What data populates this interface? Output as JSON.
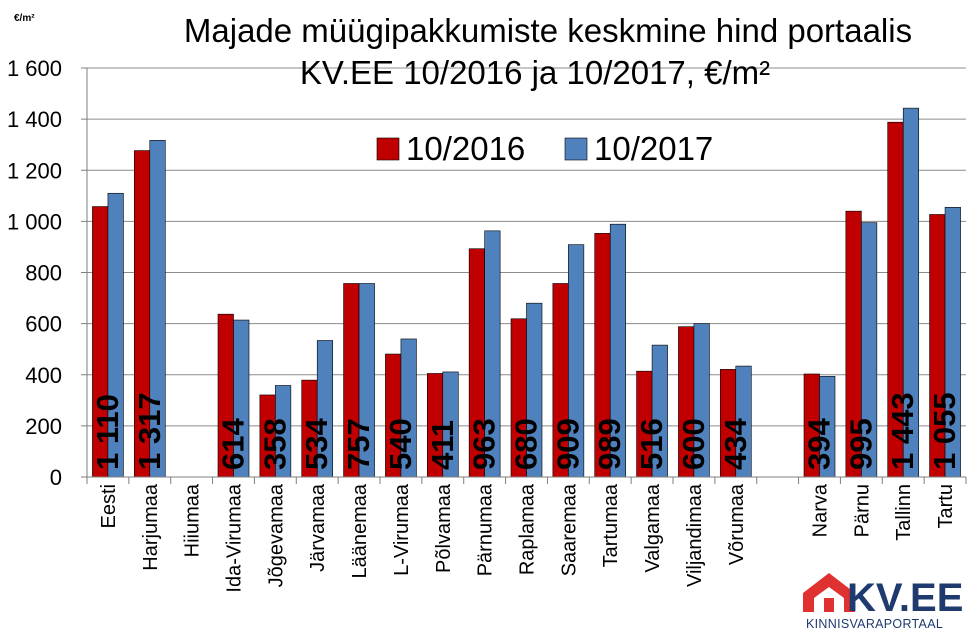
{
  "chart_data": {
    "type": "bar",
    "title_line1": "Majade müügipakkumiste keskmine hind portaalis",
    "title_line2": "KV.EE 10/2016 ja 10/2017, €/m²",
    "unit_label": "€/m²",
    "ylim": [
      0,
      1600
    ],
    "yticks": [
      0,
      200,
      400,
      600,
      800,
      1000,
      1200,
      1400,
      1600
    ],
    "ytick_labels": [
      "0",
      "200",
      "400",
      "600",
      "800",
      "1 000",
      "1 200",
      "1 400",
      "1 600"
    ],
    "grid": true,
    "legend_position": "top-right",
    "categories": [
      "Eesti",
      "Harjumaa",
      "Hiiumaa",
      "Ida-Virumaa",
      "Jõgevamaa",
      "Järvamaa",
      "Läänemaa",
      "L-Virumaa",
      "Põlvamaa",
      "Pärnumaa",
      "Raplamaa",
      "Saaremaa",
      "Tartumaa",
      "Valgamaa",
      "Viljandimaa",
      "Võrumaa",
      "",
      "Narva",
      "Pärnu",
      "Tallinn",
      "Tartu"
    ],
    "series": [
      {
        "name": "10/2016",
        "color": "#c00000",
        "values": [
          1058,
          1277,
          null,
          637,
          321,
          379,
          757,
          481,
          405,
          893,
          619,
          757,
          953,
          414,
          588,
          421,
          null,
          403,
          1040,
          1388,
          1027
        ]
      },
      {
        "name": "10/2017",
        "color": "#4f81bd",
        "values": [
          1110,
          1317,
          null,
          614,
          358,
          534,
          757,
          540,
          411,
          963,
          680,
          909,
          989,
          516,
          600,
          434,
          null,
          394,
          995,
          1443,
          1055
        ]
      }
    ],
    "data_labels": [
      "1 110",
      "1 317",
      "",
      "614",
      "358",
      "534",
      "757",
      "540",
      "411",
      "963",
      "680",
      "909",
      "989",
      "516",
      "600",
      "434",
      "",
      "394",
      "995",
      "1 443",
      "1 055"
    ]
  },
  "logo": {
    "name": "KV.EE",
    "tagline": "KINNISVARAPORTAAL",
    "house_color": "#e03131",
    "text_color": "#1f3a6e"
  }
}
